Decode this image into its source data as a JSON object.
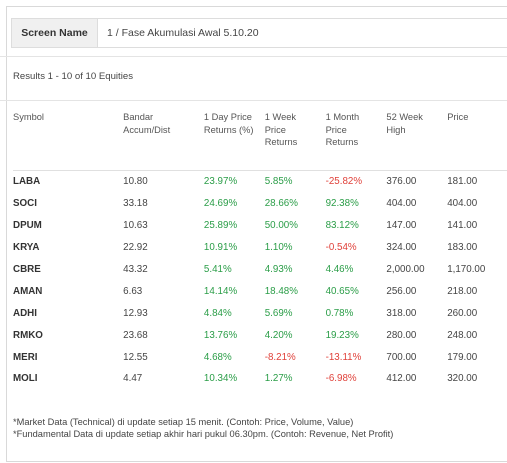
{
  "screen": {
    "label": "Screen Name",
    "value": "1 / Fase Akumulasi Awal 5.10.20"
  },
  "results_text": "Results 1 - 10 of 10 Equities",
  "table": {
    "columns": [
      "Symbol",
      "Bandar Accum/Dist",
      "1 Day Price Returns (%)",
      "1 Week Price Returns",
      "1 Month Price Returns",
      "52 Week High",
      "Price"
    ],
    "rows": [
      {
        "symbol": "LABA",
        "bandar": "10.80",
        "day": "23.97%",
        "day_trend": "pos",
        "week": "5.85%",
        "week_trend": "pos",
        "month": "-25.82%",
        "month_trend": "neg",
        "high": "376.00",
        "price": "181.00"
      },
      {
        "symbol": "SOCI",
        "bandar": "33.18",
        "day": "24.69%",
        "day_trend": "pos",
        "week": "28.66%",
        "week_trend": "pos",
        "month": "92.38%",
        "month_trend": "pos",
        "high": "404.00",
        "price": "404.00"
      },
      {
        "symbol": "DPUM",
        "bandar": "10.63",
        "day": "25.89%",
        "day_trend": "pos",
        "week": "50.00%",
        "week_trend": "pos",
        "month": "83.12%",
        "month_trend": "pos",
        "high": "147.00",
        "price": "141.00"
      },
      {
        "symbol": "KRYA",
        "bandar": "22.92",
        "day": "10.91%",
        "day_trend": "pos",
        "week": "1.10%",
        "week_trend": "pos",
        "month": "-0.54%",
        "month_trend": "neg",
        "high": "324.00",
        "price": "183.00"
      },
      {
        "symbol": "CBRE",
        "bandar": "43.32",
        "day": "5.41%",
        "day_trend": "pos",
        "week": "4.93%",
        "week_trend": "pos",
        "month": "4.46%",
        "month_trend": "pos",
        "high": "2,000.00",
        "price": "1,170.00"
      },
      {
        "symbol": "AMAN",
        "bandar": "6.63",
        "day": "14.14%",
        "day_trend": "pos",
        "week": "18.48%",
        "week_trend": "pos",
        "month": "40.65%",
        "month_trend": "pos",
        "high": "256.00",
        "price": "218.00"
      },
      {
        "symbol": "ADHI",
        "bandar": "12.93",
        "day": "4.84%",
        "day_trend": "pos",
        "week": "5.69%",
        "week_trend": "pos",
        "month": "0.78%",
        "month_trend": "pos",
        "high": "318.00",
        "price": "260.00"
      },
      {
        "symbol": "RMKO",
        "bandar": "23.68",
        "day": "13.76%",
        "day_trend": "pos",
        "week": "4.20%",
        "week_trend": "pos",
        "month": "19.23%",
        "month_trend": "pos",
        "high": "280.00",
        "price": "248.00"
      },
      {
        "symbol": "MERI",
        "bandar": "12.55",
        "day": "4.68%",
        "day_trend": "pos",
        "week": "-8.21%",
        "week_trend": "neg",
        "month": "-13.11%",
        "month_trend": "neg",
        "high": "700.00",
        "price": "179.00"
      },
      {
        "symbol": "MOLI",
        "bandar": "4.47",
        "day": "10.34%",
        "day_trend": "pos",
        "week": "1.27%",
        "week_trend": "pos",
        "month": "-6.98%",
        "month_trend": "neg",
        "high": "412.00",
        "price": "320.00"
      }
    ]
  },
  "notes": [
    "*Market Data (Technical) di update setiap 15 menit. (Contoh: Price, Volume, Value)",
    "*Fundamental Data di update setiap akhir hari pukul 06.30pm. (Contoh: Revenue, Net Profit)"
  ],
  "colors": {
    "positive": "#2a9d47",
    "negative": "#e0413a"
  }
}
